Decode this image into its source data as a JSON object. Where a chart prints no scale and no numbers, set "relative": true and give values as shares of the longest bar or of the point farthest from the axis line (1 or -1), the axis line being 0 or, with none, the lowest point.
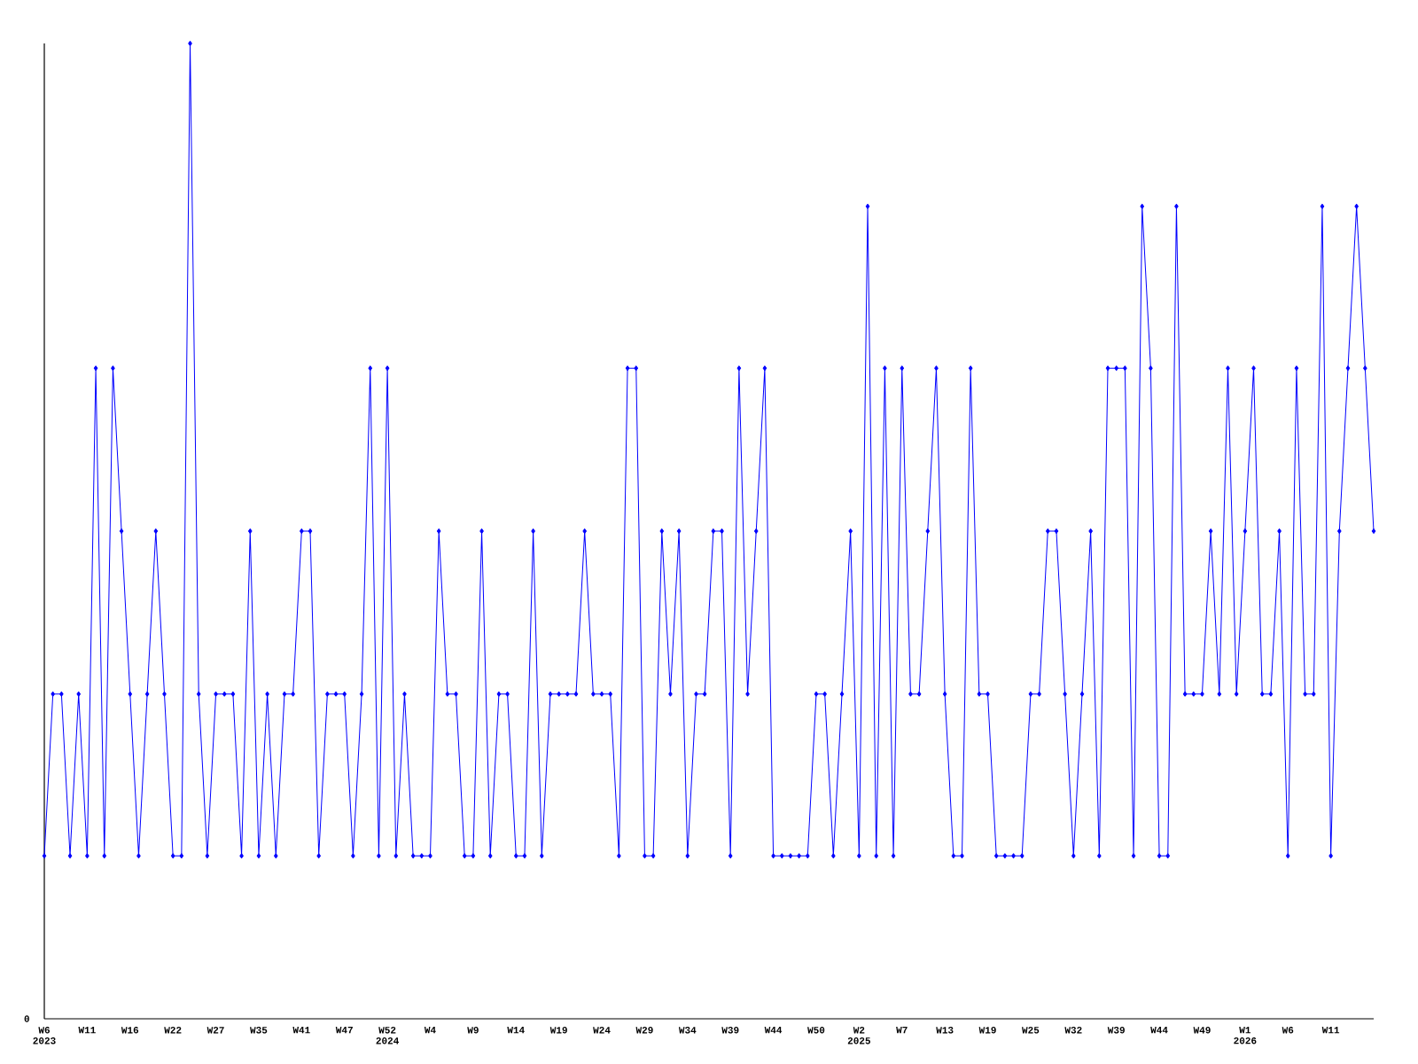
{
  "chart_data": {
    "type": "line",
    "relative": true,
    "annotations": [
      "0"
    ],
    "color": "#0000ff",
    "marker": "diamond",
    "line_style": "solid",
    "categories": [
      "W6 2023",
      null,
      null,
      null,
      null,
      "W11",
      null,
      null,
      null,
      null,
      "W16",
      null,
      null,
      null,
      null,
      "W22",
      null,
      null,
      null,
      null,
      "W27",
      null,
      null,
      null,
      null,
      "W35",
      null,
      null,
      null,
      null,
      "W41",
      null,
      null,
      null,
      null,
      "W47",
      null,
      null,
      null,
      null,
      "W52 2024",
      null,
      null,
      null,
      null,
      "W4",
      null,
      null,
      null,
      null,
      "W9",
      null,
      null,
      null,
      null,
      "W14",
      null,
      null,
      null,
      null,
      "W19",
      null,
      null,
      null,
      null,
      "W24",
      null,
      null,
      null,
      null,
      "W29",
      null,
      null,
      null,
      null,
      "W34",
      null,
      null,
      null,
      null,
      "W39",
      null,
      null,
      null,
      null,
      "W44",
      null,
      null,
      null,
      null,
      "W50",
      null,
      null,
      null,
      null,
      "W2 2025",
      null,
      null,
      null,
      null,
      "W7",
      null,
      null,
      null,
      null,
      "W13",
      null,
      null,
      null,
      null,
      "W19",
      null,
      null,
      null,
      null,
      "W25",
      null,
      null,
      null,
      null,
      "W32",
      null,
      null,
      null,
      null,
      "W39",
      null,
      null,
      null,
      null,
      "W44",
      null,
      null,
      null,
      null,
      "W49",
      null,
      null,
      null,
      null,
      "W1 2026",
      null,
      null,
      null,
      null,
      "W6",
      null,
      null,
      null,
      null,
      "W11",
      null,
      null,
      null,
      null,
      null
    ],
    "values": [
      0.167,
      0.333,
      0.333,
      0.167,
      0.333,
      0.167,
      0.667,
      0.167,
      0.667,
      0.5,
      0.333,
      0.167,
      0.333,
      0.5,
      0.333,
      0.167,
      0.167,
      1,
      0.333,
      0.167,
      0.333,
      0.333,
      0.333,
      0.167,
      0.5,
      0.167,
      0.333,
      0.167,
      0.333,
      0.333,
      0.5,
      0.5,
      0.167,
      0.333,
      0.333,
      0.333,
      0.167,
      0.333,
      0.667,
      0.167,
      0.667,
      0.167,
      0.333,
      0.167,
      0.167,
      0.167,
      0.5,
      0.333,
      0.333,
      0.167,
      0.167,
      0.5,
      0.167,
      0.333,
      0.333,
      0.167,
      0.167,
      0.5,
      0.167,
      0.333,
      0.333,
      0.333,
      0.333,
      0.5,
      0.333,
      0.333,
      0.333,
      0.167,
      0.667,
      0.667,
      0.167,
      0.167,
      0.5,
      0.333,
      0.5,
      0.167,
      0.333,
      0.333,
      0.5,
      0.5,
      0.167,
      0.667,
      0.333,
      0.5,
      0.667,
      0.167,
      0.167,
      0.167,
      0.167,
      0.167,
      0.333,
      0.333,
      0.167,
      0.333,
      0.5,
      0.167,
      0.833,
      0.167,
      0.667,
      0.167,
      0.667,
      0.333,
      0.333,
      0.5,
      0.667,
      0.333,
      0.167,
      0.167,
      0.667,
      0.333,
      0.333,
      0.167,
      0.167,
      0.167,
      0.167,
      0.333,
      0.333,
      0.5,
      0.5,
      0.333,
      0.167,
      0.333,
      0.5,
      0.167,
      0.667,
      0.667,
      0.667,
      0.167,
      0.833,
      0.667,
      0.167,
      0.167,
      0.833,
      0.333,
      0.333,
      0.333,
      0.5,
      0.333,
      0.667,
      0.333,
      0.5,
      0.667,
      0.333,
      0.333,
      0.5,
      0.167,
      0.667,
      0.333,
      0.333,
      0.833,
      0.167,
      0.5,
      0.667,
      0.833,
      0.667,
      0.5
    ]
  }
}
